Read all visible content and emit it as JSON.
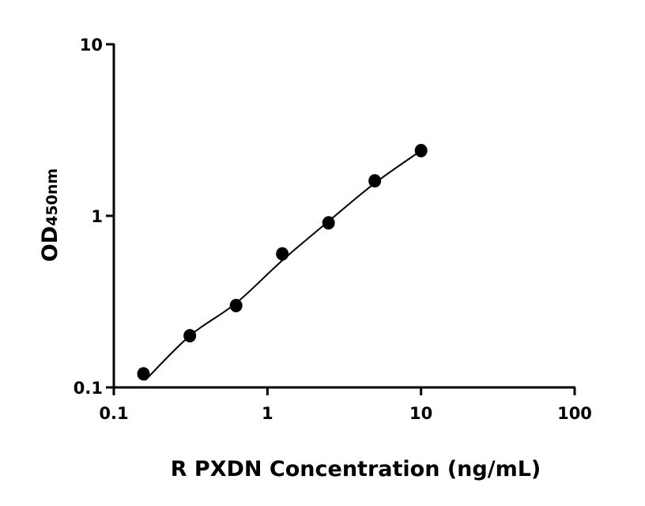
{
  "chart_data": {
    "type": "scatter",
    "xlabel": "R PXDN Concentration (ng/mL)",
    "ylabel": "OD",
    "ylabel_subscript": "450nm",
    "xscale": "log",
    "yscale": "log",
    "xlim": [
      0.1,
      100
    ],
    "ylim": [
      0.1,
      10
    ],
    "xticks": [
      {
        "value": 0.1,
        "label": "0.1"
      },
      {
        "value": 1,
        "label": "1"
      },
      {
        "value": 10,
        "label": "10"
      },
      {
        "value": 100,
        "label": "100"
      }
    ],
    "yticks": [
      {
        "value": 0.1,
        "label": "0.1"
      },
      {
        "value": 1,
        "label": "1"
      },
      {
        "value": 10,
        "label": "10"
      }
    ],
    "grid": false,
    "points": {
      "x": [
        0.156,
        0.3125,
        0.625,
        1.25,
        2.5,
        5,
        10
      ],
      "y": [
        0.12,
        0.2,
        0.3,
        0.6,
        0.91,
        1.6,
        2.4
      ]
    },
    "fit_curve": {
      "x": [
        0.16,
        0.3125,
        0.625,
        1.25,
        2.5,
        5,
        10
      ],
      "y": [
        0.11,
        0.2,
        0.31,
        0.55,
        0.93,
        1.55,
        2.4
      ]
    },
    "color": "#000000"
  }
}
